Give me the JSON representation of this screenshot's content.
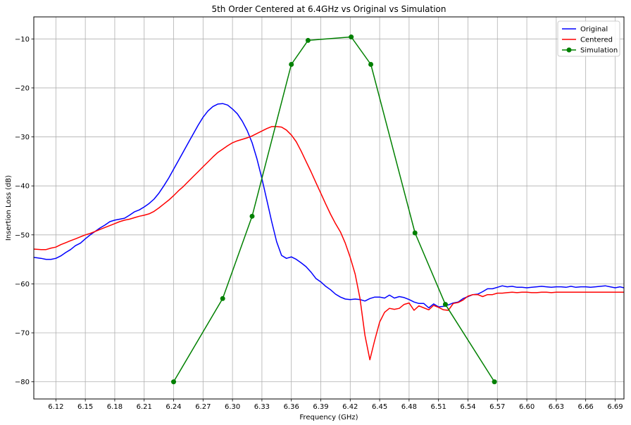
{
  "chart_data": {
    "type": "line",
    "title": "5th Order Centered at 6.4GHz vs Original vs Simulation",
    "xlabel": "Frequency (GHz)",
    "ylabel": "Insertion Loss (dB)",
    "xlim": [
      6.0975,
      6.699
    ],
    "ylim": [
      -83.5,
      -5.5
    ],
    "xticks": [
      "6.12",
      "6.15",
      "6.18",
      "6.21",
      "6.24",
      "6.27",
      "6.30",
      "6.33",
      "6.36",
      "6.39",
      "6.42",
      "6.45",
      "6.48",
      "6.51",
      "6.54",
      "6.57",
      "6.60",
      "6.63",
      "6.66",
      "6.69"
    ],
    "yticks": [
      "-80",
      "-70",
      "-60",
      "-50",
      "-40",
      "-30",
      "-20",
      "-10"
    ],
    "grid": true,
    "legend_position": "upper-right",
    "series": [
      {
        "name": "Original",
        "color": "#0000ff",
        "marker": "none",
        "x": [
          6.0975,
          6.105,
          6.11,
          6.115,
          6.12,
          6.125,
          6.13,
          6.135,
          6.14,
          6.145,
          6.15,
          6.155,
          6.16,
          6.165,
          6.17,
          6.175,
          6.18,
          6.185,
          6.19,
          6.195,
          6.2,
          6.205,
          6.21,
          6.215,
          6.22,
          6.225,
          6.23,
          6.235,
          6.24,
          6.245,
          6.25,
          6.255,
          6.26,
          6.265,
          6.27,
          6.275,
          6.28,
          6.285,
          6.29,
          6.295,
          6.3,
          6.305,
          6.31,
          6.315,
          6.32,
          6.325,
          6.33,
          6.335,
          6.34,
          6.345,
          6.35,
          6.355,
          6.36,
          6.365,
          6.37,
          6.375,
          6.38,
          6.385,
          6.39,
          6.395,
          6.4,
          6.405,
          6.41,
          6.415,
          6.42,
          6.425,
          6.43,
          6.435,
          6.44,
          6.445,
          6.45,
          6.455,
          6.46,
          6.465,
          6.47,
          6.475,
          6.48,
          6.485,
          6.49,
          6.495,
          6.5,
          6.505,
          6.51,
          6.515,
          6.52,
          6.525,
          6.53,
          6.535,
          6.54,
          6.545,
          6.55,
          6.555,
          6.56,
          6.565,
          6.57,
          6.575,
          6.58,
          6.585,
          6.59,
          6.595,
          6.6,
          6.605,
          6.61,
          6.615,
          6.62,
          6.625,
          6.63,
          6.635,
          6.64,
          6.645,
          6.65,
          6.655,
          6.66,
          6.665,
          6.67,
          6.675,
          6.68,
          6.685,
          6.69,
          6.695,
          6.699
        ],
        "y": [
          -54.6,
          -54.8,
          -55.0,
          -55.0,
          -54.8,
          -54.3,
          -53.6,
          -53.0,
          -52.2,
          -51.7,
          -50.8,
          -50.0,
          -49.3,
          -48.6,
          -48.0,
          -47.3,
          -47.0,
          -46.8,
          -46.6,
          -46.0,
          -45.3,
          -44.9,
          -44.3,
          -43.6,
          -42.7,
          -41.5,
          -40.0,
          -38.4,
          -36.6,
          -34.8,
          -33.0,
          -31.2,
          -29.4,
          -27.6,
          -26.0,
          -24.7,
          -23.8,
          -23.3,
          -23.2,
          -23.5,
          -24.3,
          -25.3,
          -26.8,
          -28.7,
          -31.2,
          -34.5,
          -38.5,
          -42.9,
          -47.3,
          -51.4,
          -54.2,
          -54.8,
          -54.5,
          -55.0,
          -55.7,
          -56.5,
          -57.6,
          -58.9,
          -59.6,
          -60.5,
          -61.2,
          -62.1,
          -62.7,
          -63.1,
          -63.2,
          -63.1,
          -63.2,
          -63.5,
          -63.0,
          -62.7,
          -62.7,
          -62.9,
          -62.3,
          -62.9,
          -62.6,
          -62.8,
          -63.2,
          -63.7,
          -64.0,
          -64.0,
          -64.9,
          -64.1,
          -64.7,
          -64.6,
          -64.3,
          -63.9,
          -63.7,
          -63.0,
          -62.6,
          -62.2,
          -62.1,
          -61.6,
          -61.0,
          -61.0,
          -60.7,
          -60.4,
          -60.6,
          -60.5,
          -60.7,
          -60.7,
          -60.8,
          -60.7,
          -60.6,
          -60.5,
          -60.6,
          -60.7,
          -60.6,
          -60.6,
          -60.7,
          -60.5,
          -60.7,
          -60.6,
          -60.6,
          -60.7,
          -60.6,
          -60.5,
          -60.4,
          -60.6,
          -60.8,
          -60.6,
          -60.8
        ]
      },
      {
        "name": "Centered",
        "color": "#ff0000",
        "marker": "none",
        "x": [
          6.0975,
          6.105,
          6.11,
          6.115,
          6.12,
          6.125,
          6.13,
          6.135,
          6.14,
          6.145,
          6.15,
          6.155,
          6.16,
          6.165,
          6.17,
          6.175,
          6.18,
          6.185,
          6.19,
          6.195,
          6.2,
          6.205,
          6.21,
          6.215,
          6.22,
          6.225,
          6.23,
          6.235,
          6.24,
          6.245,
          6.25,
          6.255,
          6.26,
          6.265,
          6.27,
          6.275,
          6.28,
          6.285,
          6.29,
          6.295,
          6.3,
          6.305,
          6.31,
          6.315,
          6.32,
          6.325,
          6.33,
          6.335,
          6.34,
          6.345,
          6.35,
          6.355,
          6.36,
          6.365,
          6.37,
          6.375,
          6.38,
          6.385,
          6.39,
          6.395,
          6.4,
          6.405,
          6.41,
          6.415,
          6.42,
          6.425,
          6.43,
          6.435,
          6.44,
          6.445,
          6.45,
          6.455,
          6.46,
          6.465,
          6.47,
          6.475,
          6.48,
          6.485,
          6.49,
          6.495,
          6.5,
          6.505,
          6.51,
          6.515,
          6.52,
          6.525,
          6.53,
          6.535,
          6.54,
          6.545,
          6.55,
          6.555,
          6.56,
          6.565,
          6.57,
          6.575,
          6.58,
          6.585,
          6.59,
          6.595,
          6.6,
          6.605,
          6.61,
          6.615,
          6.62,
          6.625,
          6.63,
          6.635,
          6.64,
          6.645,
          6.65,
          6.655,
          6.66,
          6.665,
          6.67,
          6.675,
          6.68,
          6.685,
          6.69,
          6.695,
          6.699
        ],
        "y": [
          -52.9,
          -53.0,
          -53.0,
          -52.7,
          -52.5,
          -52.0,
          -51.6,
          -51.2,
          -50.8,
          -50.4,
          -50.0,
          -49.7,
          -49.3,
          -48.9,
          -48.5,
          -48.1,
          -47.7,
          -47.3,
          -47.0,
          -46.8,
          -46.5,
          -46.2,
          -46.0,
          -45.7,
          -45.2,
          -44.5,
          -43.7,
          -42.9,
          -42.0,
          -41.0,
          -40.1,
          -39.1,
          -38.1,
          -37.1,
          -36.1,
          -35.1,
          -34.1,
          -33.2,
          -32.5,
          -31.8,
          -31.2,
          -30.8,
          -30.5,
          -30.2,
          -29.8,
          -29.3,
          -28.8,
          -28.3,
          -27.9,
          -27.9,
          -28.0,
          -28.6,
          -29.6,
          -31.0,
          -32.9,
          -35.0,
          -37.1,
          -39.3,
          -41.5,
          -43.7,
          -45.8,
          -47.7,
          -49.4,
          -51.7,
          -54.6,
          -58.0,
          -63.0,
          -70.5,
          -75.5,
          -71.5,
          -67.8,
          -65.8,
          -65.0,
          -65.2,
          -65.0,
          -64.2,
          -63.9,
          -65.4,
          -64.5,
          -64.9,
          -65.3,
          -64.4,
          -64.8,
          -65.3,
          -65.4,
          -64.0,
          -63.8,
          -63.3,
          -62.5,
          -62.2,
          -62.2,
          -62.6,
          -62.2,
          -62.2,
          -61.9,
          -61.9,
          -61.8,
          -61.7,
          -61.8,
          -61.7,
          -61.7,
          -61.8,
          -61.8,
          -61.7,
          -61.7,
          -61.8,
          -61.7,
          -61.7,
          -61.7,
          -61.7,
          -61.7,
          -61.7,
          -61.7,
          -61.7,
          -61.7,
          -61.7,
          -61.7,
          -61.7,
          -61.7,
          -61.7,
          -61.7
        ]
      },
      {
        "name": "Simulation",
        "color": "#008000",
        "marker": "circle",
        "x": [
          6.24,
          6.29,
          6.32,
          6.36,
          6.377,
          6.421,
          6.441,
          6.486,
          6.517,
          6.567
        ],
        "y": [
          -80.0,
          -63.0,
          -46.2,
          -15.2,
          -10.3,
          -9.6,
          -15.2,
          -49.6,
          -64.2,
          -80.0
        ]
      }
    ]
  }
}
